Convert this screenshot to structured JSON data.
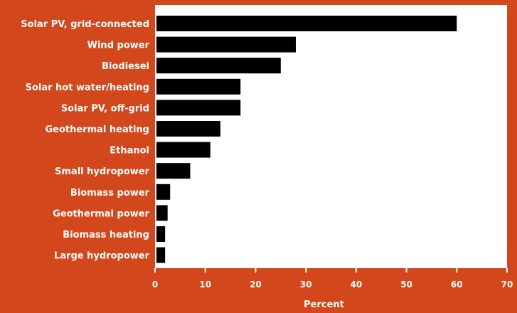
{
  "chart_data": {
    "type": "bar",
    "orientation": "horizontal",
    "categories": [
      "Solar PV, grid-connected",
      "Wind power",
      "Biodiesel",
      "Solar hot water/heating",
      "Solar PV, off-grid",
      "Geothermal heating",
      "Ethanol",
      "Small hydropower",
      "Biomass power",
      "Geothermal power",
      "Biomass heating",
      "Large hydropower"
    ],
    "values": [
      60,
      28,
      25,
      17,
      17,
      13,
      11,
      7,
      3,
      2.5,
      2,
      2
    ],
    "xlabel": "Percent",
    "ylabel": "",
    "xlim": [
      0,
      70
    ],
    "xticks": [
      "0",
      "10",
      "20",
      "30",
      "40",
      "50",
      "60",
      "70"
    ],
    "grid": false,
    "colors": {
      "background": "#d2471b",
      "plot_area": "#ffffff",
      "bar": "#000000",
      "text": "#ffffff"
    }
  }
}
